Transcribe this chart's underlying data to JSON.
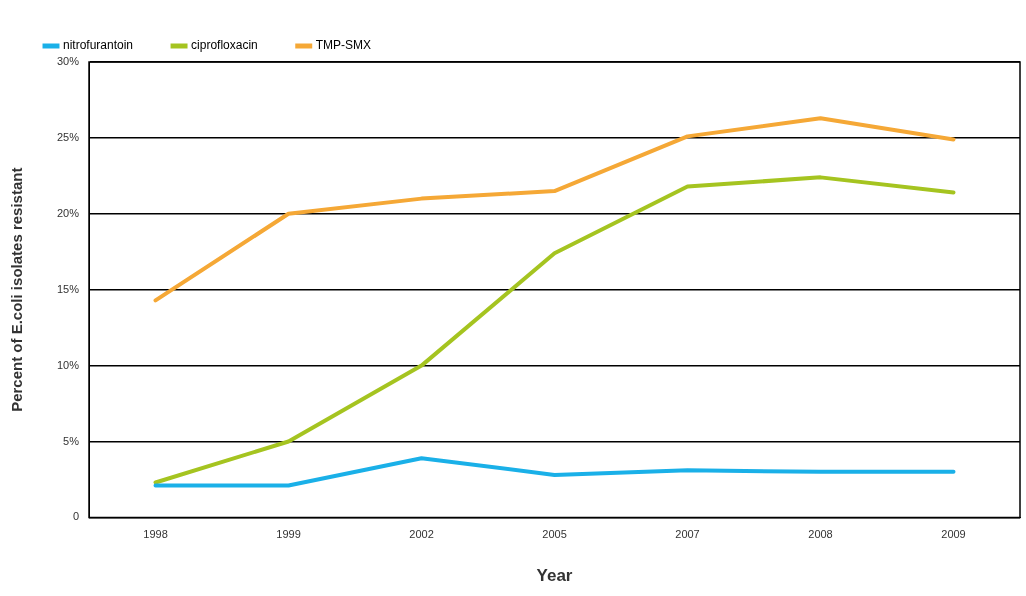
{
  "chart_data": {
    "type": "line",
    "xlabel": "Year",
    "ylabel": "Percent of E.coli isolates resistant",
    "categories": [
      "1998",
      "1999",
      "2002",
      "2005",
      "2007",
      "2008",
      "2009"
    ],
    "series": [
      {
        "name": "nitrofurantoin",
        "color": "#1ab0e8",
        "values": [
          2.1,
          2.1,
          3.9,
          2.8,
          3.1,
          3.0,
          3.0
        ]
      },
      {
        "name": "ciprofloxacin",
        "color": "#a5c420",
        "values": [
          2.3,
          5.0,
          10.0,
          17.4,
          21.8,
          22.4,
          21.4
        ]
      },
      {
        "name": "TMP-SMX",
        "color": "#f5a836",
        "values": [
          14.3,
          20.0,
          21.0,
          21.5,
          25.1,
          26.3,
          24.9
        ]
      }
    ],
    "ylim": [
      0,
      30
    ],
    "yticks": [
      {
        "value": 0,
        "label": "0"
      },
      {
        "value": 5,
        "label": "5%"
      },
      {
        "value": 10,
        "label": "10%"
      },
      {
        "value": 15,
        "label": "15%"
      },
      {
        "value": 20,
        "label": "20%"
      },
      {
        "value": 25,
        "label": "25%"
      },
      {
        "value": 30,
        "label": "30%"
      }
    ],
    "grid": "y",
    "legend": "top left",
    "marker": "none",
    "line_style": "solid"
  }
}
